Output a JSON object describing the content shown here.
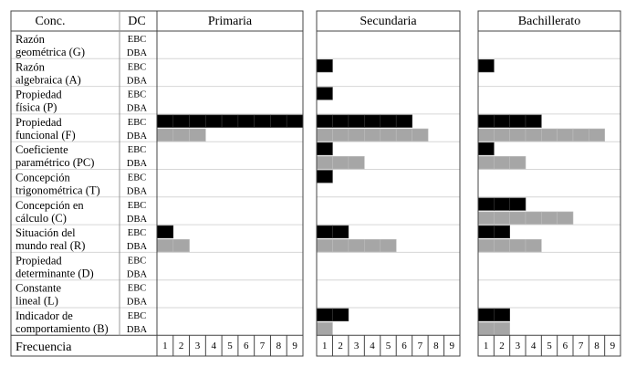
{
  "header": {
    "concept": "Conc.",
    "dc": "DC"
  },
  "footer": {
    "frequency": "Frecuencia"
  },
  "colors": {
    "ebc": "#000000",
    "dba": "#a6a6a6"
  },
  "chart_data": {
    "type": "bar",
    "panels": [
      "Primaria",
      "Secundaria",
      "Bachillerato"
    ],
    "ticks": [
      "1",
      "2",
      "3",
      "4",
      "5",
      "6",
      "7",
      "8",
      "9"
    ],
    "xlim": [
      0,
      9
    ],
    "series_labels": [
      "EBC",
      "DBA"
    ],
    "rows": [
      {
        "label": [
          "Razón",
          "geométrica (G)"
        ],
        "EBC": [
          0,
          0,
          0
        ],
        "DBA": [
          0,
          0,
          0
        ]
      },
      {
        "label": [
          "Razón",
          "algebraica (A)"
        ],
        "EBC": [
          0,
          1,
          1
        ],
        "DBA": [
          0,
          0,
          0
        ]
      },
      {
        "label": [
          "Propiedad",
          "física (P)"
        ],
        "EBC": [
          0,
          1,
          0
        ],
        "DBA": [
          0,
          0,
          0
        ]
      },
      {
        "label": [
          "Propiedad",
          "funcional (F)"
        ],
        "EBC": [
          9,
          6,
          4
        ],
        "DBA": [
          3,
          7,
          8
        ]
      },
      {
        "label": [
          "Coeficiente",
          "paramétrico (PC)"
        ],
        "EBC": [
          0,
          1,
          1
        ],
        "DBA": [
          0,
          3,
          3
        ]
      },
      {
        "label": [
          "Concepción",
          "trigonométrica (T)"
        ],
        "EBC": [
          0,
          1,
          0
        ],
        "DBA": [
          0,
          0,
          0
        ]
      },
      {
        "label": [
          "Concepción en",
          "cálculo (C)"
        ],
        "EBC": [
          0,
          0,
          3
        ],
        "DBA": [
          0,
          0,
          6
        ]
      },
      {
        "label": [
          "Situación del",
          "mundo real (R)"
        ],
        "EBC": [
          1,
          2,
          2
        ],
        "DBA": [
          2,
          5,
          4
        ]
      },
      {
        "label": [
          "Propiedad",
          "determinante (D)"
        ],
        "EBC": [
          0,
          0,
          0
        ],
        "DBA": [
          0,
          0,
          0
        ]
      },
      {
        "label": [
          "Constante",
          "lineal (L)"
        ],
        "EBC": [
          0,
          0,
          0
        ],
        "DBA": [
          0,
          0,
          0
        ]
      },
      {
        "label": [
          "Indicador de",
          "comportamiento (B)"
        ],
        "EBC": [
          0,
          2,
          2
        ],
        "DBA": [
          0,
          1,
          2
        ]
      }
    ]
  }
}
